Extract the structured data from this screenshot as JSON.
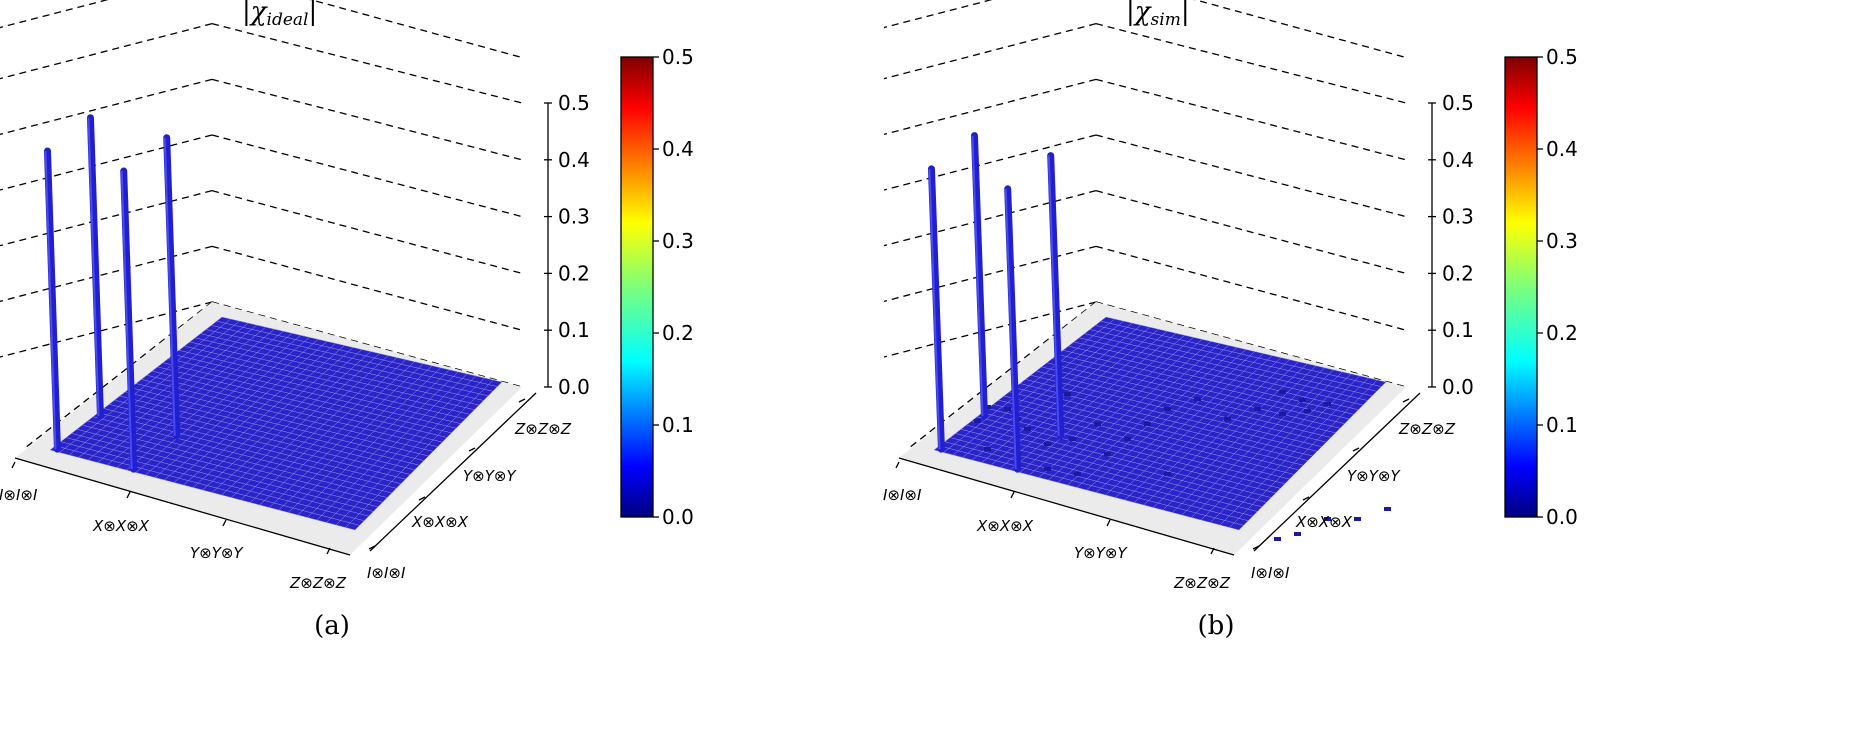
{
  "chart_data": [
    {
      "type": "bar3d",
      "title_symbol": "χ",
      "title_subscript": "ideal",
      "caption": "(a)",
      "xlabel": "",
      "ylabel": "",
      "zlabel": "",
      "x_tick_labels": [
        "I⊗I⊗I",
        "X⊗X⊗X",
        "Y⊗Y⊗Y",
        "Z⊗Z⊗Z"
      ],
      "y_tick_labels": [
        "I⊗I⊗I",
        "X⊗X⊗X",
        "Y⊗Y⊗Y",
        "Z⊗Z⊗Z"
      ],
      "z_ticks": [
        "0.0",
        "0.1",
        "0.2",
        "0.3",
        "0.4",
        "0.5"
      ],
      "zlim": [
        0,
        0.5
      ],
      "grid_size": 64,
      "colormap": "jet",
      "colorbar": {
        "range": [
          0,
          0.5
        ],
        "ticks": [
          "0.0",
          "0.1",
          "0.2",
          "0.3",
          "0.4",
          "0.5"
        ]
      },
      "bars": [
        {
          "x": "I⊗I⊗I",
          "y": "I⊗I⊗I",
          "value": 0.5
        },
        {
          "x": "I⊗I⊗I",
          "y": "X⊗X⊗X",
          "value": 0.5
        },
        {
          "x": "X⊗X⊗X",
          "y": "I⊗I⊗I",
          "value": 0.5
        },
        {
          "x": "X⊗X⊗X",
          "y": "X⊗X⊗X",
          "value": 0.5
        }
      ],
      "bar_color": "#2020d0"
    },
    {
      "type": "bar3d",
      "title_symbol": "χ",
      "title_subscript": "sim",
      "caption": "(b)",
      "xlabel": "",
      "ylabel": "",
      "zlabel": "",
      "x_tick_labels": [
        "I⊗I⊗I",
        "X⊗X⊗X",
        "Y⊗Y⊗Y",
        "Z⊗Z⊗Z"
      ],
      "y_tick_labels": [
        "I⊗I⊗I",
        "X⊗X⊗X",
        "Y⊗Y⊗Y",
        "Z⊗Z⊗Z"
      ],
      "z_ticks": [
        "0.0",
        "0.1",
        "0.2",
        "0.3",
        "0.4",
        "0.5"
      ],
      "zlim": [
        0,
        0.5
      ],
      "grid_size": 64,
      "colormap": "jet",
      "colorbar": {
        "range": [
          0,
          0.5
        ],
        "ticks": [
          "0.0",
          "0.1",
          "0.2",
          "0.3",
          "0.4",
          "0.5"
        ]
      },
      "bars": [
        {
          "x": "I⊗I⊗I",
          "y": "I⊗I⊗I",
          "value": 0.47
        },
        {
          "x": "I⊗I⊗I",
          "y": "X⊗X⊗X",
          "value": 0.47
        },
        {
          "x": "X⊗X⊗X",
          "y": "I⊗I⊗I",
          "value": 0.47
        },
        {
          "x": "X⊗X⊗X",
          "y": "X⊗X⊗X",
          "value": 0.47
        }
      ],
      "small_values_note_count": 40,
      "bar_color": "#2020d0"
    }
  ]
}
